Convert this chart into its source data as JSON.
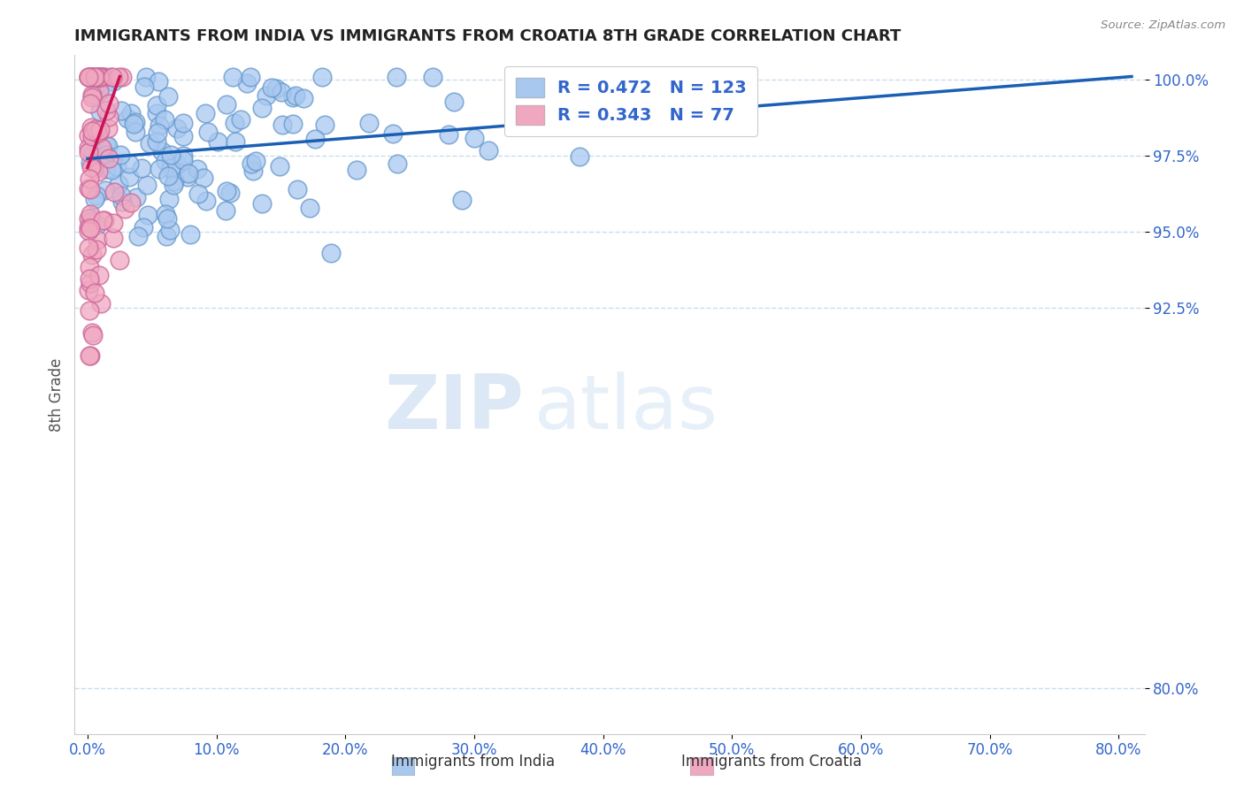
{
  "title": "IMMIGRANTS FROM INDIA VS IMMIGRANTS FROM CROATIA 8TH GRADE CORRELATION CHART",
  "source": "Source: ZipAtlas.com",
  "ylabel": "8th Grade",
  "ytick_labels": [
    "80.0%",
    "92.5%",
    "95.0%",
    "97.5%",
    "100.0%"
  ],
  "ytick_values": [
    0.8,
    0.925,
    0.95,
    0.975,
    1.0
  ],
  "xtick_labels": [
    "0.0%",
    "10.0%",
    "20.0%",
    "30.0%",
    "40.0%",
    "50.0%",
    "60.0%",
    "70.0%",
    "80.0%"
  ],
  "xtick_values": [
    0.0,
    0.1,
    0.2,
    0.3,
    0.4,
    0.5,
    0.6,
    0.7,
    0.8
  ],
  "xrange": [
    -0.01,
    0.82
  ],
  "yrange": [
    0.785,
    1.008
  ],
  "legend_blue_R": "R = 0.472",
  "legend_blue_N": "N = 123",
  "legend_pink_R": "R = 0.343",
  "legend_pink_N": "N = 77",
  "legend_label_blue": "Immigrants from India",
  "legend_label_pink": "Immigrants from Croatia",
  "blue_color": "#a8c8f0",
  "pink_color": "#f0a8c0",
  "blue_edge_color": "#6699cc",
  "pink_edge_color": "#cc6699",
  "trendline_blue_color": "#1a5fb4",
  "trendline_pink_color": "#cc1155",
  "watermark_ZIP": "ZIP",
  "watermark_atlas": "atlas",
  "grid_color": "#c8ddf0",
  "blue_trend_x": [
    0.0,
    0.81
  ],
  "blue_trend_y": [
    0.974,
    1.001
  ],
  "pink_trend_x": [
    0.0,
    0.025
  ],
  "pink_trend_y": [
    0.971,
    1.001
  ]
}
